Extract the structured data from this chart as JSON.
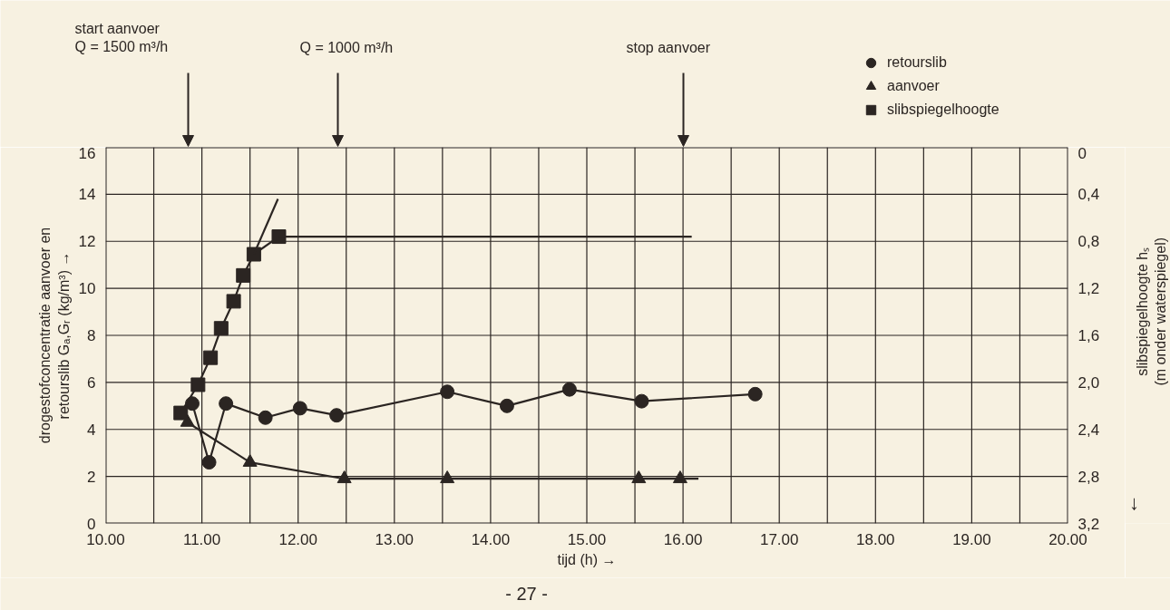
{
  "chart_data": {
    "type": "line",
    "xlabel": "tijd (h) →",
    "ylabel": "drogestofconcentratie aanvoer en\nretourslib Gₐ,Gᵣ (kg/m³) →",
    "y2label": "slibspiegelhoogte hₛ\n(m onder waterspiegel)",
    "xlim": [
      10,
      20
    ],
    "ylim": [
      0,
      16
    ],
    "y2lim": [
      3.2,
      0
    ],
    "xticks": [
      {
        "value": 10,
        "label": "10.00"
      },
      {
        "value": 10.5,
        "label": null
      },
      {
        "value": 11,
        "label": "11.00"
      },
      {
        "value": 11.5,
        "label": null
      },
      {
        "value": 12,
        "label": "12.00"
      },
      {
        "value": 12.5,
        "label": null
      },
      {
        "value": 13,
        "label": "13.00"
      },
      {
        "value": 13.5,
        "label": null
      },
      {
        "value": 14,
        "label": "14.00"
      },
      {
        "value": 14.5,
        "label": null
      },
      {
        "value": 15,
        "label": "15.00"
      },
      {
        "value": 15.5,
        "label": null
      },
      {
        "value": 16,
        "label": "16.00"
      },
      {
        "value": 16.5,
        "label": null
      },
      {
        "value": 17,
        "label": "17.00"
      },
      {
        "value": 17.5,
        "label": null
      },
      {
        "value": 18,
        "label": "18.00"
      },
      {
        "value": 18.5,
        "label": null
      },
      {
        "value": 19,
        "label": "19.00"
      },
      {
        "value": 19.5,
        "label": null
      },
      {
        "value": 20,
        "label": "20.00"
      }
    ],
    "yticks": [
      0,
      2,
      4,
      6,
      8,
      10,
      12,
      14,
      16
    ],
    "y2ticks": [
      0,
      {
        "value": 0.4,
        "label": "0,4"
      },
      {
        "value": 0.8,
        "label": "0,8"
      },
      {
        "value": 1.2,
        "label": "1,2"
      },
      {
        "value": 1.6,
        "label": "1,6"
      },
      {
        "value": 2.0,
        "label": "2,0"
      },
      {
        "value": 2.4,
        "label": "2,4"
      },
      {
        "value": 2.8,
        "label": "2,8"
      },
      {
        "value": 3.2,
        "label": "3,2"
      }
    ],
    "grid": true,
    "legend": "top right",
    "series": [
      {
        "name": "retourslib",
        "color": "#2b2522",
        "marker": "circle",
        "x": [
          10.9,
          11.075,
          11.25,
          11.66,
          12.02,
          12.4,
          13.55,
          14.17,
          14.82,
          15.57,
          16.75
        ],
        "values": [
          5.1,
          2.6,
          5.1,
          4.5,
          4.9,
          4.6,
          5.6,
          5.0,
          5.7,
          5.2,
          5.5
        ]
      },
      {
        "name": "aanvoer",
        "color": "#2b2522",
        "marker": "triangle",
        "x": [
          10.85,
          11.5,
          12.48,
          13.55,
          15.54,
          15.97
        ],
        "values": [
          4.3,
          2.6,
          1.9,
          1.9,
          1.9,
          1.9
        ]
      },
      {
        "type": "line",
        "color": "#2b2522",
        "marker": "none",
        "x": [
          15.97,
          16.16
        ],
        "values": [
          1.9,
          1.9
        ]
      },
      {
        "name": "slibspiegelhoogte",
        "color": "#2b2522",
        "marker": "square",
        "axis": "y2",
        "x": [
          10.78,
          10.96,
          11.09,
          11.2,
          11.33,
          11.43,
          11.54,
          11.8
        ],
        "values": [
          2.26,
          2.02,
          1.79,
          1.54,
          1.31,
          1.09,
          0.91,
          0.76
        ]
      },
      {
        "type": "line",
        "color": "#2b2522",
        "marker": "none",
        "axis": "y2",
        "x": [
          11.8,
          16.09
        ],
        "values": [
          0.76,
          0.76
        ]
      },
      {
        "type": "line",
        "color": "#2b2522",
        "marker": "none",
        "axis": "y2",
        "x": [
          11.54,
          11.79
        ],
        "values": [
          0.91,
          0.44
        ]
      }
    ],
    "annotations": [
      "start aanvoer\nQ = 1500 m³/h",
      "Q = 1000 m³/h",
      "stop aanvoer",
      "↓",
      "- 27 -"
    ]
  }
}
